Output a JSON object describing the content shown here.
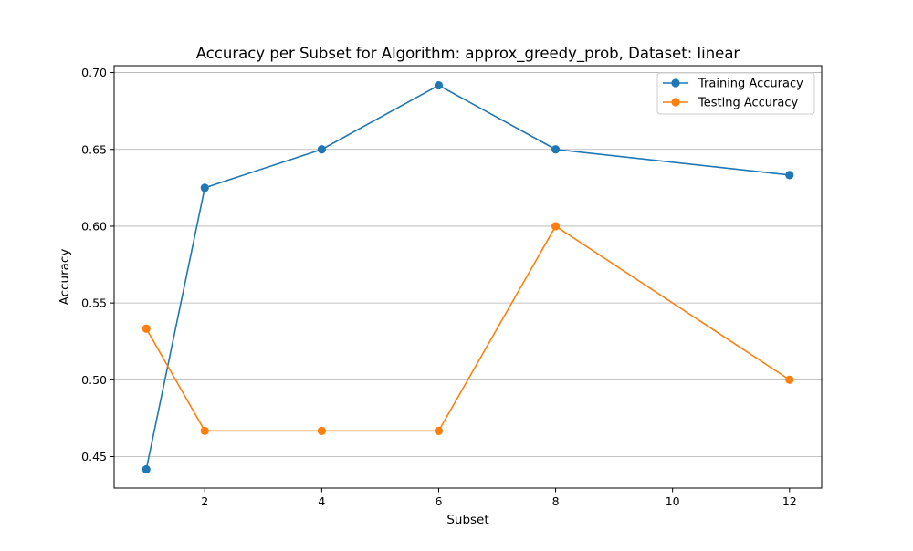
{
  "chart_data": {
    "type": "line",
    "title": "Accuracy per Subset for Algorithm: approx_greedy_prob, Dataset: linear",
    "xlabel": "Subset",
    "ylabel": "Accuracy",
    "x": [
      1,
      2,
      4,
      6,
      8,
      12
    ],
    "xlim": [
      0.45,
      12.55
    ],
    "ylim": [
      0.4295,
      0.7045
    ],
    "xticks": [
      2,
      4,
      6,
      8,
      10,
      12
    ],
    "yticks": [
      0.45,
      0.5,
      0.55,
      0.6,
      0.65,
      0.7
    ],
    "xtick_labels": [
      "2",
      "4",
      "6",
      "8",
      "10",
      "12"
    ],
    "ytick_labels": [
      "0.45",
      "0.50",
      "0.55",
      "0.60",
      "0.65",
      "0.70"
    ],
    "grid": "horizontal",
    "legend_position": "top-right",
    "series": [
      {
        "name": "Training Accuracy",
        "color": "#1f77b4",
        "marker": "circle",
        "values": [
          0.4417,
          0.625,
          0.65,
          0.6917,
          0.65,
          0.6333
        ]
      },
      {
        "name": "Testing Accuracy",
        "color": "#ff7f0e",
        "marker": "circle",
        "values": [
          0.5333,
          0.4667,
          0.4667,
          0.4667,
          0.6,
          0.5
        ]
      }
    ]
  }
}
